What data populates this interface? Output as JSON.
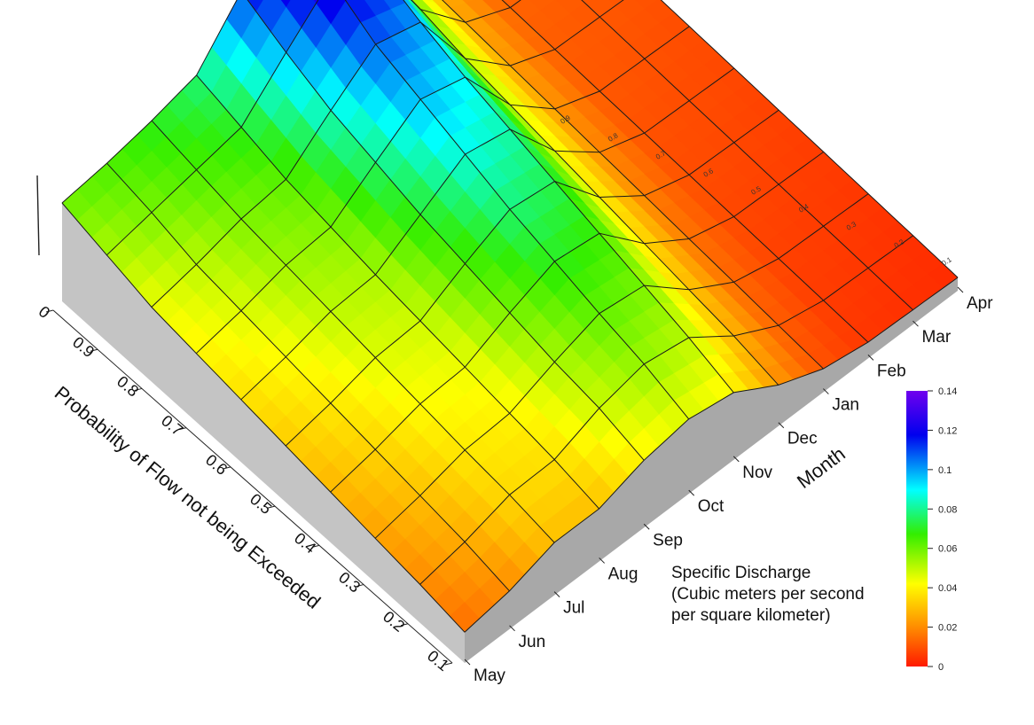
{
  "chart_data": {
    "type": "surface3d",
    "title": "",
    "x_axis": {
      "label": "Month",
      "ticks": [
        "May",
        "Jun",
        "Jul",
        "Aug",
        "Sep",
        "Oct",
        "Nov",
        "Dec",
        "Jan",
        "Feb",
        "Mar",
        "Apr"
      ]
    },
    "y_axis": {
      "label": "Probability of Flow not being Exceeded",
      "ticks": [
        "0.1",
        "0.2",
        "0.3",
        "0.4",
        "0.5",
        "0.6",
        "0.7",
        "0.8",
        "0.9",
        "0"
      ],
      "back_ticks": [
        "0.1",
        "0.2",
        "0.3",
        "0.4",
        "0.5",
        "0.6",
        "0.7",
        "0.8",
        "0.9"
      ]
    },
    "z_axis": {
      "label": "Specific Discharge (Cubic meters per second per square kilometer)",
      "range": [
        0,
        0.14
      ]
    },
    "colorbar": {
      "label_lines": [
        "Specific Discharge",
        "(Cubic meters per second",
        "per square kilometer)"
      ],
      "ticks": [
        "0",
        "0.02",
        "0.04",
        "0.06",
        "0.08",
        "0.1",
        "0.12",
        "0.14"
      ],
      "colors": [
        "#ff1a00",
        "#ff8a00",
        "#ffff00",
        "#33ee00",
        "#00ffff",
        "#0000ee",
        "#7000ee"
      ]
    },
    "probabilities": [
      0.1,
      0.2,
      0.3,
      0.4,
      0.5,
      0.6,
      0.7,
      0.8,
      0.9,
      1.0
    ],
    "months": [
      "May",
      "Jun",
      "Jul",
      "Aug",
      "Sep",
      "Oct",
      "Nov",
      "Dec",
      "Jan",
      "Feb",
      "Mar",
      "Apr"
    ],
    "values": [
      [
        0.015,
        0.02,
        0.03,
        0.03,
        0.04,
        0.045,
        0.04,
        0.022,
        0.01,
        0.005,
        0.004,
        0.003
      ],
      [
        0.02,
        0.026,
        0.035,
        0.036,
        0.048,
        0.055,
        0.05,
        0.028,
        0.012,
        0.006,
        0.005,
        0.004
      ],
      [
        0.024,
        0.03,
        0.038,
        0.04,
        0.052,
        0.062,
        0.058,
        0.032,
        0.014,
        0.007,
        0.006,
        0.005
      ],
      [
        0.028,
        0.034,
        0.042,
        0.044,
        0.058,
        0.07,
        0.066,
        0.036,
        0.016,
        0.008,
        0.007,
        0.006
      ],
      [
        0.032,
        0.038,
        0.046,
        0.048,
        0.064,
        0.078,
        0.074,
        0.04,
        0.018,
        0.009,
        0.008,
        0.007
      ],
      [
        0.036,
        0.042,
        0.05,
        0.052,
        0.07,
        0.088,
        0.082,
        0.044,
        0.02,
        0.01,
        0.009,
        0.008
      ],
      [
        0.04,
        0.046,
        0.054,
        0.057,
        0.078,
        0.098,
        0.09,
        0.048,
        0.022,
        0.011,
        0.01,
        0.009
      ],
      [
        0.044,
        0.05,
        0.058,
        0.062,
        0.086,
        0.108,
        0.1,
        0.052,
        0.024,
        0.012,
        0.011,
        0.01
      ],
      [
        0.052,
        0.058,
        0.064,
        0.07,
        0.098,
        0.125,
        0.112,
        0.058,
        0.026,
        0.013,
        0.012,
        0.011
      ],
      [
        0.06,
        0.064,
        0.07,
        0.078,
        0.112,
        0.14,
        0.125,
        0.062,
        0.028,
        0.014,
        0.013,
        0.012
      ]
    ]
  }
}
